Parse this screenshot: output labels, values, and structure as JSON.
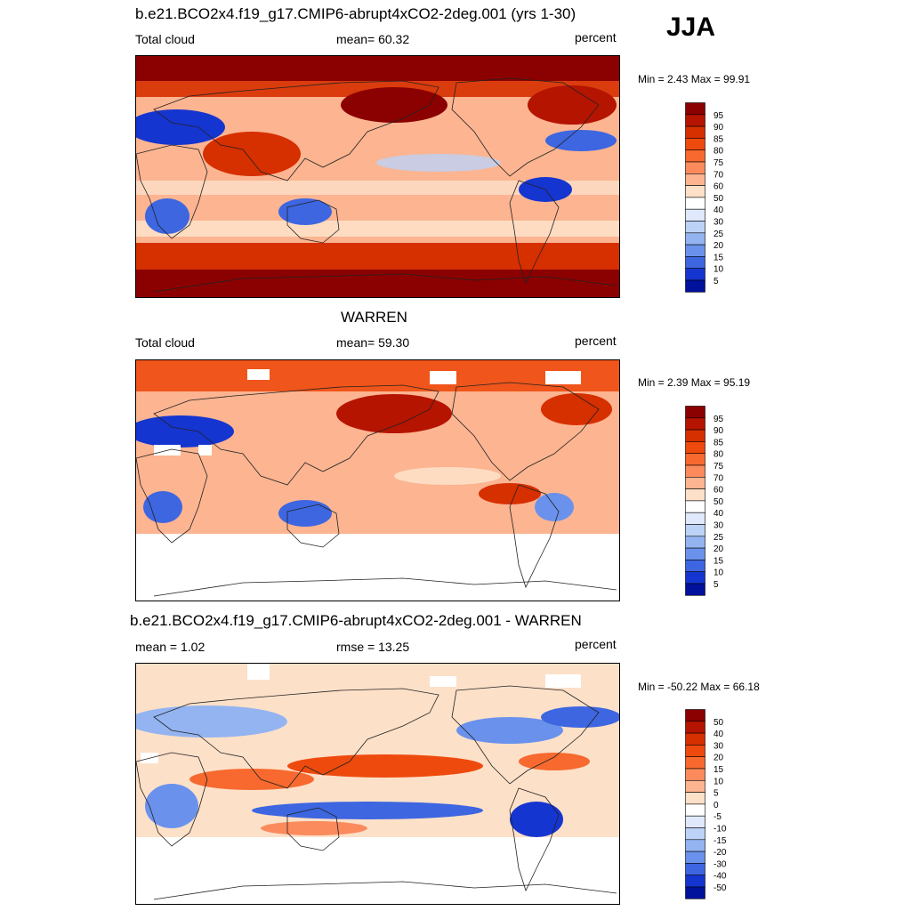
{
  "season": "JJA",
  "land_color": "#222222",
  "panels": [
    {
      "title": "b.e21.BCO2x4.f19_g17.CMIP6-abrupt4xCO2-2deg.001 (yrs 1-30)",
      "left_label": "Total cloud",
      "stat_label": "mean=  60.32",
      "units": "percent",
      "minmax": "Min =   2.43 Max =  99.91"
    },
    {
      "title": "WARREN",
      "left_label": "Total cloud",
      "stat_label": "mean=  59.30",
      "units": "percent",
      "minmax": "Min =   2.39 Max =  95.19"
    },
    {
      "title": "b.e21.BCO2x4.f19_g17.CMIP6-abrupt4xCO2-2deg.001 - WARREN",
      "left_label": "mean =   1.02",
      "stat_label": "rmse =  13.25",
      "units": "percent",
      "minmax": "Min = -50.22 Max =  66.18"
    }
  ],
  "chart_data": [
    {
      "type": "heatmap",
      "title": "b.e21.BCO2x4.f19_g17.CMIP6-abrupt4xCO2-2deg.001 (yrs 1-30)",
      "variable": "Total cloud",
      "units": "percent",
      "mean": 60.32,
      "min": 2.43,
      "max": 99.91,
      "colorbar_levels": [
        "95",
        "90",
        "85",
        "80",
        "75",
        "70",
        "60",
        "50",
        "40",
        "30",
        "25",
        "20",
        "15",
        "10",
        "5"
      ],
      "colorbar_colors": [
        "#8b0000",
        "#b51400",
        "#d62f00",
        "#ee4a0e",
        "#f7692e",
        "#fb8a5c",
        "#fcb491",
        "#fde0c8",
        "#ffffff",
        "#dfe9fb",
        "#bcd2f6",
        "#93b4f1",
        "#6a92ec",
        "#3d66e0",
        "#1535d0",
        "#00119b"
      ]
    },
    {
      "type": "heatmap",
      "title": "WARREN",
      "variable": "Total cloud",
      "units": "percent",
      "mean": 59.3,
      "min": 2.39,
      "max": 95.19,
      "colorbar_levels": [
        "95",
        "90",
        "85",
        "80",
        "75",
        "70",
        "60",
        "50",
        "40",
        "30",
        "25",
        "20",
        "15",
        "10",
        "5"
      ],
      "colorbar_colors": [
        "#8b0000",
        "#b51400",
        "#d62f00",
        "#ee4a0e",
        "#f7692e",
        "#fb8a5c",
        "#fcb491",
        "#fde0c8",
        "#ffffff",
        "#dfe9fb",
        "#bcd2f6",
        "#93b4f1",
        "#6a92ec",
        "#3d66e0",
        "#1535d0",
        "#00119b"
      ]
    },
    {
      "type": "heatmap",
      "title": "b.e21.BCO2x4.f19_g17.CMIP6-abrupt4xCO2-2deg.001 - WARREN",
      "units": "percent",
      "mean": 1.02,
      "rmse": 13.25,
      "min": -50.22,
      "max": 66.18,
      "colorbar_levels": [
        "50",
        "40",
        "30",
        "20",
        "15",
        "10",
        "5",
        "0",
        "-5",
        "-10",
        "-15",
        "-20",
        "-30",
        "-40",
        "-50"
      ],
      "colorbar_colors": [
        "#8b0000",
        "#b51400",
        "#d62f00",
        "#ee4a0e",
        "#f7692e",
        "#fb8a5c",
        "#fcb491",
        "#fde0c8",
        "#ffffff",
        "#dfe9fb",
        "#bcd2f6",
        "#93b4f1",
        "#6a92ec",
        "#3d66e0",
        "#1535d0",
        "#00119b"
      ]
    }
  ]
}
